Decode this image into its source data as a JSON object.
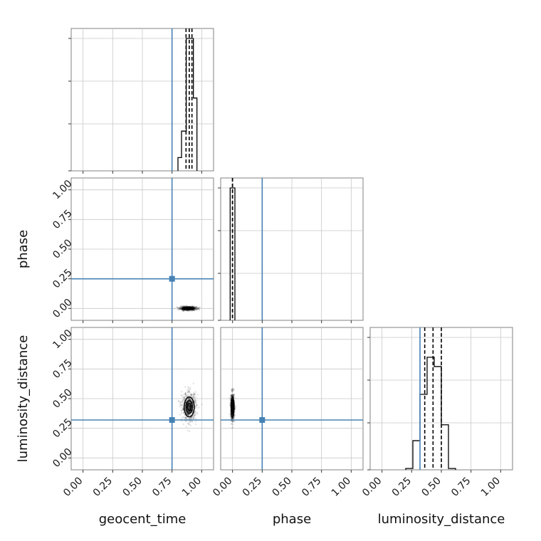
{
  "chart_data": {
    "type": "corner",
    "parameters": [
      "geocent_time",
      "phase",
      "luminosity_distance"
    ],
    "xlabels": [
      "geocent_time",
      "phase",
      "luminosity_distance"
    ],
    "ylabels": [
      "",
      "phase",
      "luminosity_distance"
    ],
    "axis_range": [
      -0.1,
      1.1
    ],
    "ticks": [
      0.0,
      0.25,
      0.5,
      0.75,
      1.0
    ],
    "tick_labels": [
      "0.00",
      "0.25",
      "0.50",
      "0.75",
      "1.00"
    ],
    "grid": true,
    "colors": {
      "truth": "#4682b4",
      "hist": "#000000",
      "contour": "#000000",
      "axes": "#808080",
      "grid": "#c8c8c8"
    },
    "truths": {
      "geocent_time": 0.75,
      "phase": 0.25,
      "luminosity_distance": 0.32
    },
    "quantiles": {
      "geocent_time": [
        0.868,
        0.895,
        0.918
      ],
      "phase": [
        0.0,
        0.0,
        0.0
      ],
      "luminosity_distance": [
        0.36,
        0.43,
        0.5
      ]
    },
    "histograms": {
      "geocent_time": {
        "bin_edges": [
          0.8,
          0.83,
          0.87,
          0.9,
          0.93,
          0.96
        ],
        "counts": [
          0.1,
          0.3,
          1.0,
          1.0,
          0.55
        ]
      },
      "phase": {
        "bin_edges": [
          -0.02,
          0.02
        ],
        "counts": [
          1.0
        ]
      },
      "luminosity_distance": {
        "bin_edges": [
          0.2,
          0.26,
          0.32,
          0.38,
          0.44,
          0.5,
          0.56,
          0.62
        ],
        "counts": [
          0.01,
          0.22,
          0.57,
          0.85,
          0.78,
          0.34,
          0.01
        ]
      }
    },
    "hist_ymax": {
      "geocent_time": 1.0,
      "phase": 1.0,
      "luminosity_distance": 1.0
    },
    "scatter_2d": {
      "phase_vs_geocent_time": {
        "x_center": 0.885,
        "x_spread": 0.035,
        "y_center": 0.0,
        "y_spread": 0.008
      },
      "luminosity_distance_vs_geocent_time": {
        "x_center": 0.895,
        "x_spread": 0.03,
        "y_center": 0.43,
        "y_spread": 0.06
      },
      "luminosity_distance_vs_phase": {
        "x_center": 0.0,
        "x_spread": 0.008,
        "y_center": 0.43,
        "y_spread": 0.06
      }
    }
  }
}
